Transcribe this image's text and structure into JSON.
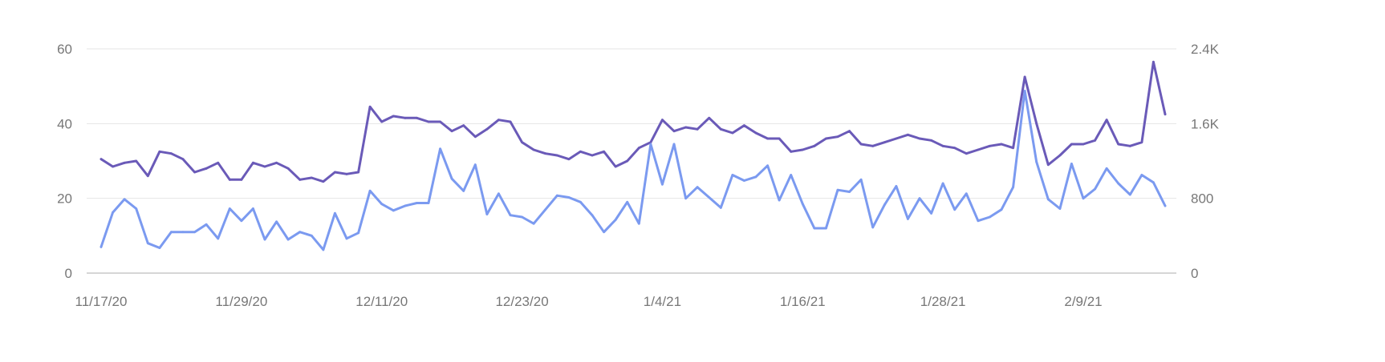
{
  "chart_data": {
    "type": "line",
    "x_ticks": [
      "11/17/20",
      "11/29/20",
      "12/11/20",
      "12/23/20",
      "1/4/21",
      "1/16/21",
      "1/28/21",
      "2/9/21"
    ],
    "x_tick_index": [
      0,
      12,
      24,
      36,
      48,
      60,
      72,
      84
    ],
    "x_count": 92,
    "y_left": {
      "ticks": [
        "0",
        "20",
        "40",
        "60"
      ],
      "min": 0,
      "max": 60
    },
    "y_right": {
      "ticks": [
        "0",
        "800",
        "1.6K",
        "2.4K"
      ],
      "min": 0,
      "max": 2400
    },
    "grid": true,
    "colors": {
      "left": "#6a5ab8",
      "right": "#7b9af0"
    },
    "series": [
      {
        "axis": "left",
        "values": [
          30.5,
          28.5,
          29.5,
          30,
          26,
          32.5,
          32,
          30.5,
          27,
          28,
          29.5,
          25,
          25,
          29.5,
          28.5,
          29.5,
          28,
          25,
          25.5,
          24.5,
          27,
          26.5,
          27,
          44.5,
          40.5,
          42,
          41.5,
          41.5,
          40.5,
          40.5,
          38,
          39.5,
          36.5,
          38.5,
          41,
          40.5,
          35,
          33,
          32,
          31.5,
          30.5,
          32.5,
          31.5,
          32.5,
          28.5,
          30,
          33.5,
          35,
          41,
          38,
          39,
          38.5,
          41.5,
          38.5,
          37.5,
          39.5,
          37.5,
          36,
          36,
          32.5,
          33,
          34,
          36,
          36.5,
          38,
          34.5,
          34,
          35,
          36,
          37,
          36,
          35.5,
          34,
          33.5,
          32,
          33,
          34,
          34.5,
          33.5,
          52.5,
          40,
          29,
          31.5,
          34.5,
          34.5,
          35.5,
          41,
          34.5,
          34,
          35,
          56.5,
          42.5
        ]
      },
      {
        "axis": "right",
        "values": [
          280,
          650,
          790,
          690,
          320,
          270,
          440,
          440,
          440,
          520,
          370,
          690,
          560,
          690,
          360,
          550,
          360,
          440,
          400,
          250,
          640,
          370,
          430,
          880,
          740,
          670,
          720,
          750,
          750,
          1330,
          1010,
          880,
          1160,
          630,
          850,
          620,
          600,
          530,
          680,
          830,
          810,
          760,
          620,
          440,
          570,
          760,
          530,
          1380,
          950,
          1380,
          800,
          920,
          810,
          700,
          1050,
          990,
          1030,
          1150,
          780,
          1050,
          740,
          480,
          480,
          890,
          870,
          1000,
          490,
          730,
          930,
          580,
          800,
          640,
          960,
          680,
          850,
          560,
          600,
          680,
          920,
          1950,
          1190,
          790,
          690,
          1170,
          800,
          900,
          1120,
          960,
          840,
          1050,
          970,
          720
        ]
      }
    ]
  }
}
